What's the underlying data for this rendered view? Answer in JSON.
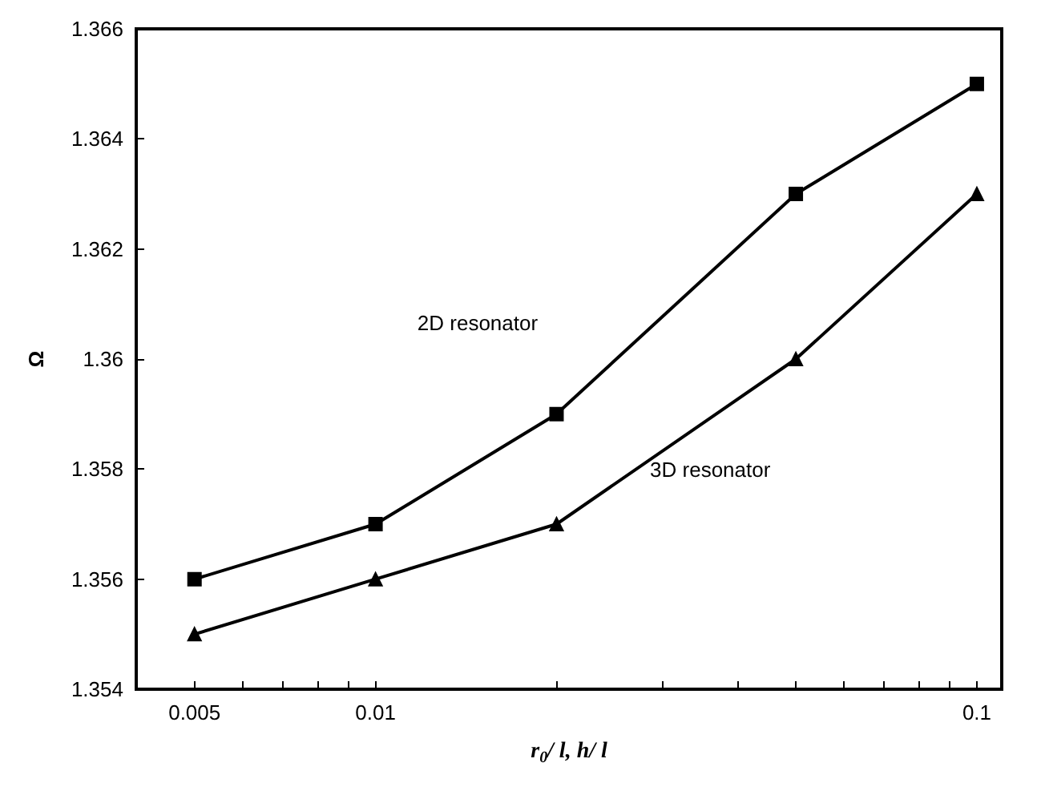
{
  "chart_data": {
    "type": "line",
    "xlabel": "r$_{0}$/ l, h/ l",
    "ylabel": "Ω",
    "log": "x",
    "grid": false,
    "line_style": "solid",
    "x": [
      0.005,
      0.01,
      0.02,
      0.05,
      0.1
    ],
    "xlim": [
      0.004,
      0.11
    ],
    "xticks": [
      0.005,
      {
        "value": 0.006,
        "label": null
      },
      {
        "value": 0.007,
        "label": null
      },
      {
        "value": 0.008,
        "label": null
      },
      {
        "value": 0.009,
        "label": null
      },
      0.01,
      {
        "value": 0.02,
        "label": null
      },
      {
        "value": 0.03,
        "label": null
      },
      {
        "value": 0.04,
        "label": null
      },
      {
        "value": 0.05,
        "label": null
      },
      {
        "value": 0.06,
        "label": null
      },
      {
        "value": 0.07,
        "label": null
      },
      {
        "value": 0.08,
        "label": null
      },
      {
        "value": 0.09,
        "label": null
      },
      0.1
    ],
    "ylim": [
      1.354,
      1.366
    ],
    "yticks": [
      1.354,
      1.356,
      1.358,
      1.36,
      1.362,
      1.364,
      1.366
    ],
    "series": [
      {
        "color": "#000000",
        "marker": "square",
        "values": [
          1.356,
          1.357,
          1.359,
          1.363,
          1.365
        ]
      },
      {
        "color": "#000000",
        "marker": "triangle",
        "values": [
          1.355,
          1.356,
          1.357,
          1.36,
          1.363
        ]
      }
    ],
    "annotations": [
      "2D resonator",
      "3D resonator"
    ]
  }
}
